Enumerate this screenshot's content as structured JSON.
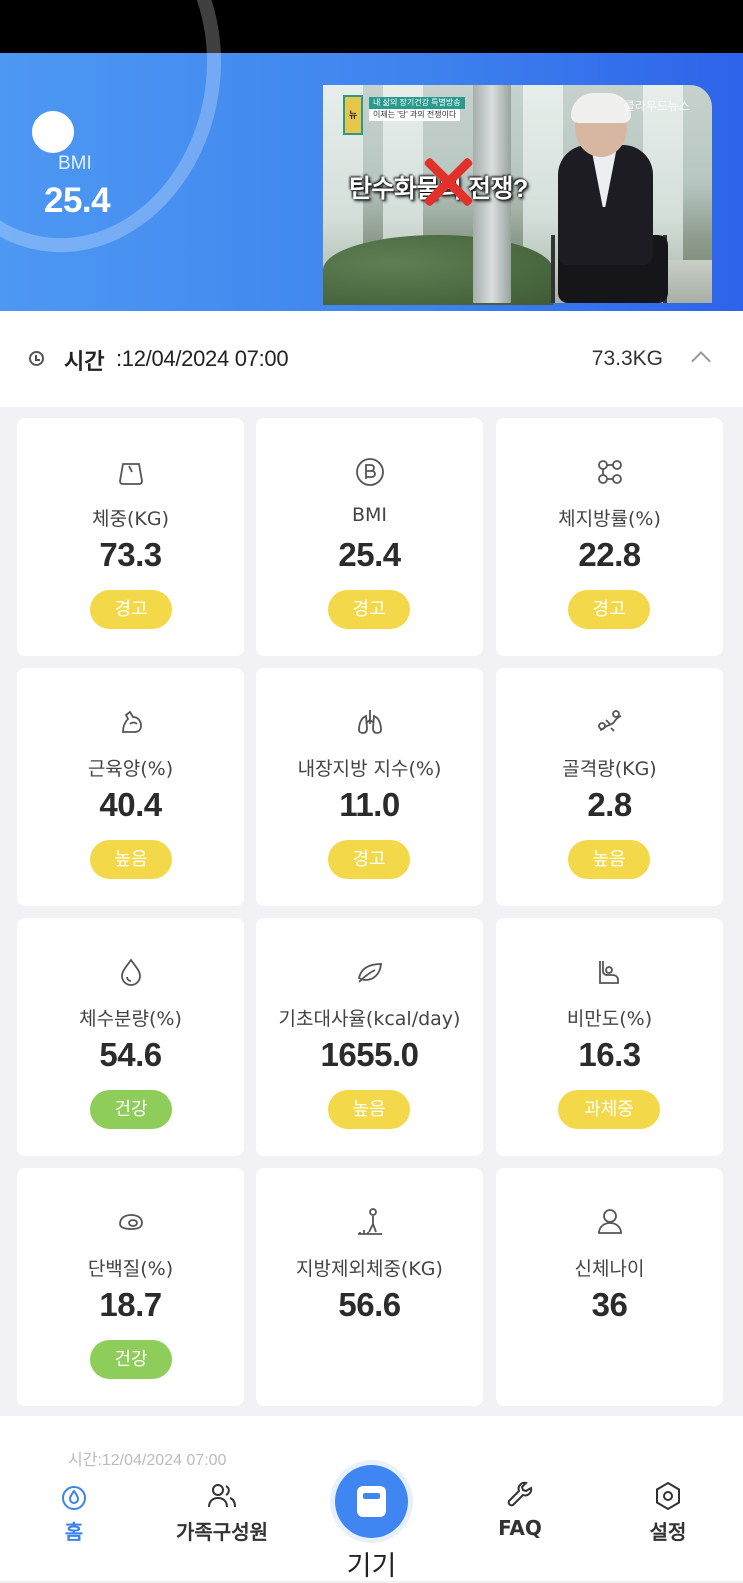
{
  "hero": {
    "bmi_label": "BMI",
    "bmi_value": "25.4",
    "video": {
      "headline": "탄수화물의 전쟁?",
      "badge": "뉴",
      "caption_top": "내 삶의 장기건강 특별방송",
      "caption_bottom": "이제는 '당' 과의 전쟁이다",
      "logo": "클라우드뉴스"
    }
  },
  "timebar": {
    "label": "시간",
    "value": ":12/04/2024 07:00",
    "weight": "73.3KG"
  },
  "colors": {
    "primary": "#3f86f2",
    "badge_warning": "#f3d94a",
    "badge_healthy": "#8fcd5a"
  },
  "metrics": [
    {
      "icon": "scale-icon",
      "label": "체중(KG)",
      "value": "73.3",
      "badge": "경고",
      "status": "warning"
    },
    {
      "icon": "bmi-icon",
      "label": "BMI",
      "value": "25.4",
      "badge": "경고",
      "status": "warning"
    },
    {
      "icon": "molecule-icon",
      "label": "체지방률(%)",
      "value": "22.8",
      "badge": "경고",
      "status": "warning"
    },
    {
      "icon": "muscle-icon",
      "label": "근육양(%)",
      "value": "40.4",
      "badge": "높음",
      "status": "warning"
    },
    {
      "icon": "lungs-icon",
      "label": "내장지방 지수(%)",
      "value": "11.0",
      "badge": "경고",
      "status": "warning"
    },
    {
      "icon": "bone-icon",
      "label": "골격량(KG)",
      "value": "2.8",
      "badge": "높음",
      "status": "warning"
    },
    {
      "icon": "water-drop-icon",
      "label": "체수분량(%)",
      "value": "54.6",
      "badge": "건강",
      "status": "healthy"
    },
    {
      "icon": "leaf-icon",
      "label": "기초대사율(kcal/day)",
      "value": "1655.0",
      "badge": "높음",
      "status": "warning"
    },
    {
      "icon": "belly-icon",
      "label": "비만도(%)",
      "value": "16.3",
      "badge": "과체중",
      "status": "warning"
    },
    {
      "icon": "protein-icon",
      "label": "단백질(%)",
      "value": "18.7",
      "badge": "건강",
      "status": "healthy"
    },
    {
      "icon": "body-fat-free-icon",
      "label": "지방제외체중(KG)",
      "value": "56.6",
      "badge": "",
      "status": ""
    },
    {
      "icon": "person-icon",
      "label": "신체나이",
      "value": "36",
      "badge": "",
      "status": ""
    }
  ],
  "nav": {
    "peek_text": "시간:12/04/2024 07:00",
    "items": [
      {
        "icon": "home-drop-icon",
        "label": "홈",
        "active": true
      },
      {
        "icon": "family-icon",
        "label": "가족구성원",
        "active": false
      },
      {
        "icon": "scale-device-icon",
        "label": "기기",
        "active": false
      },
      {
        "icon": "wrench-icon",
        "label": "FAQ",
        "active": false
      },
      {
        "icon": "settings-hex-icon",
        "label": "설정",
        "active": false
      }
    ]
  }
}
